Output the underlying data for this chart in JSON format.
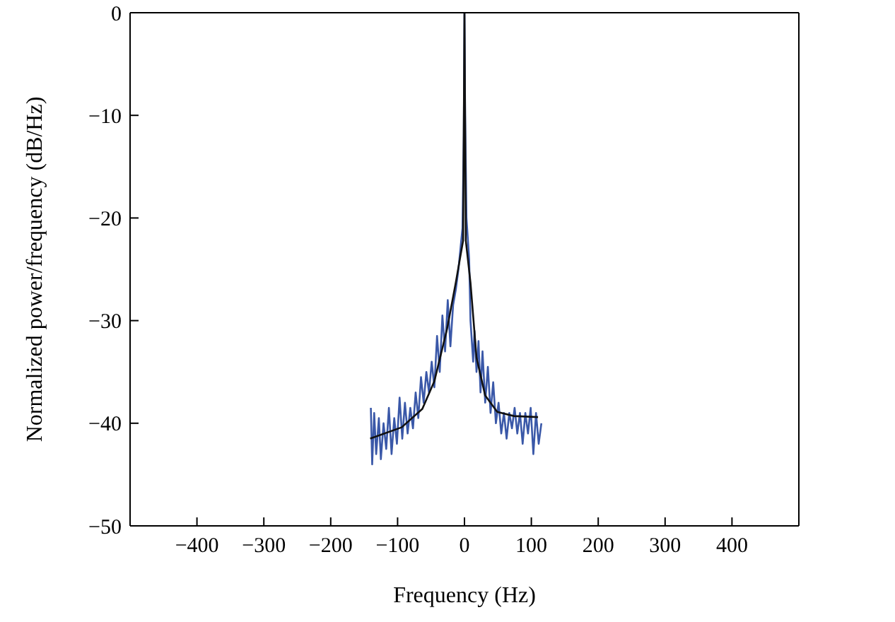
{
  "chart_data": {
    "type": "line",
    "xlabel": "Frequency (Hz)",
    "ylabel": "Normalized power/frequency (dB/Hz)",
    "xlim": [
      -500,
      500
    ],
    "xticks": [
      {
        "value": -400,
        "label": "−400"
      },
      {
        "value": -300,
        "label": "−300"
      },
      {
        "value": -200,
        "label": "−200"
      },
      {
        "value": -100,
        "label": "−100"
      },
      0,
      100,
      200,
      300,
      400
    ],
    "ylim": [
      -50,
      0
    ],
    "yticks": [
      {
        "value": -50,
        "label": "−50"
      },
      {
        "value": -40,
        "label": "−40"
      },
      {
        "value": -30,
        "label": "−30"
      },
      {
        "value": -20,
        "label": "−20"
      },
      {
        "value": -10,
        "label": "−10"
      },
      0
    ],
    "marker": "none",
    "line_style": "solid",
    "series": [
      {
        "color": "#3a58a8",
        "x": [
          -140,
          -138,
          -135,
          -132,
          -128,
          -125,
          -121,
          -117,
          -113,
          -109,
          -105,
          -101,
          -97,
          -93,
          -89,
          -85,
          -81,
          -77,
          -73,
          -69,
          -65,
          -61,
          -57,
          -53,
          -49,
          -45,
          -41,
          -37,
          -33,
          -29,
          -25,
          -21,
          -17,
          -13,
          -9,
          -6,
          -3,
          -1,
          0,
          1,
          3,
          5,
          7,
          9,
          11,
          13,
          15,
          18,
          21,
          24,
          27,
          31,
          35,
          39,
          43,
          47,
          51,
          55,
          59,
          63,
          67,
          71,
          75,
          79,
          83,
          87,
          91,
          95,
          99,
          103,
          107,
          111,
          115
        ],
        "values": [
          -38.5,
          -44,
          -39,
          -43,
          -39.5,
          -43.5,
          -40,
          -42.5,
          -38.5,
          -43,
          -39.5,
          -42,
          -37.5,
          -41.5,
          -38,
          -41,
          -38.5,
          -40.5,
          -37,
          -39.5,
          -35.5,
          -38,
          -35,
          -37,
          -34,
          -36.5,
          -31.5,
          -35,
          -29.5,
          -33,
          -28,
          -32.5,
          -28.5,
          -27,
          -25,
          -23,
          -21,
          -12,
          0,
          -10,
          -20,
          -22,
          -24,
          -30,
          -32,
          -34,
          -31,
          -35,
          -32,
          -37,
          -33,
          -38,
          -34.5,
          -39,
          -36,
          -40,
          -38,
          -41,
          -39,
          -41.5,
          -39,
          -40.5,
          -38.5,
          -41,
          -39,
          -42,
          -39,
          -41,
          -38.5,
          -43,
          -39,
          -42,
          -40
        ]
      },
      {
        "color": "#111111",
        "x": [
          -141,
          -94,
          -63,
          -45,
          -26,
          -13,
          -2,
          0,
          2,
          9,
          18,
          31,
          49,
          74,
          110
        ],
        "values": [
          -41.5,
          -40.4,
          -38.6,
          -35.9,
          -30.8,
          -26.3,
          -22.2,
          0,
          -22.2,
          -26.3,
          -33.6,
          -37.3,
          -38.9,
          -39.3,
          -39.4
        ]
      }
    ]
  }
}
